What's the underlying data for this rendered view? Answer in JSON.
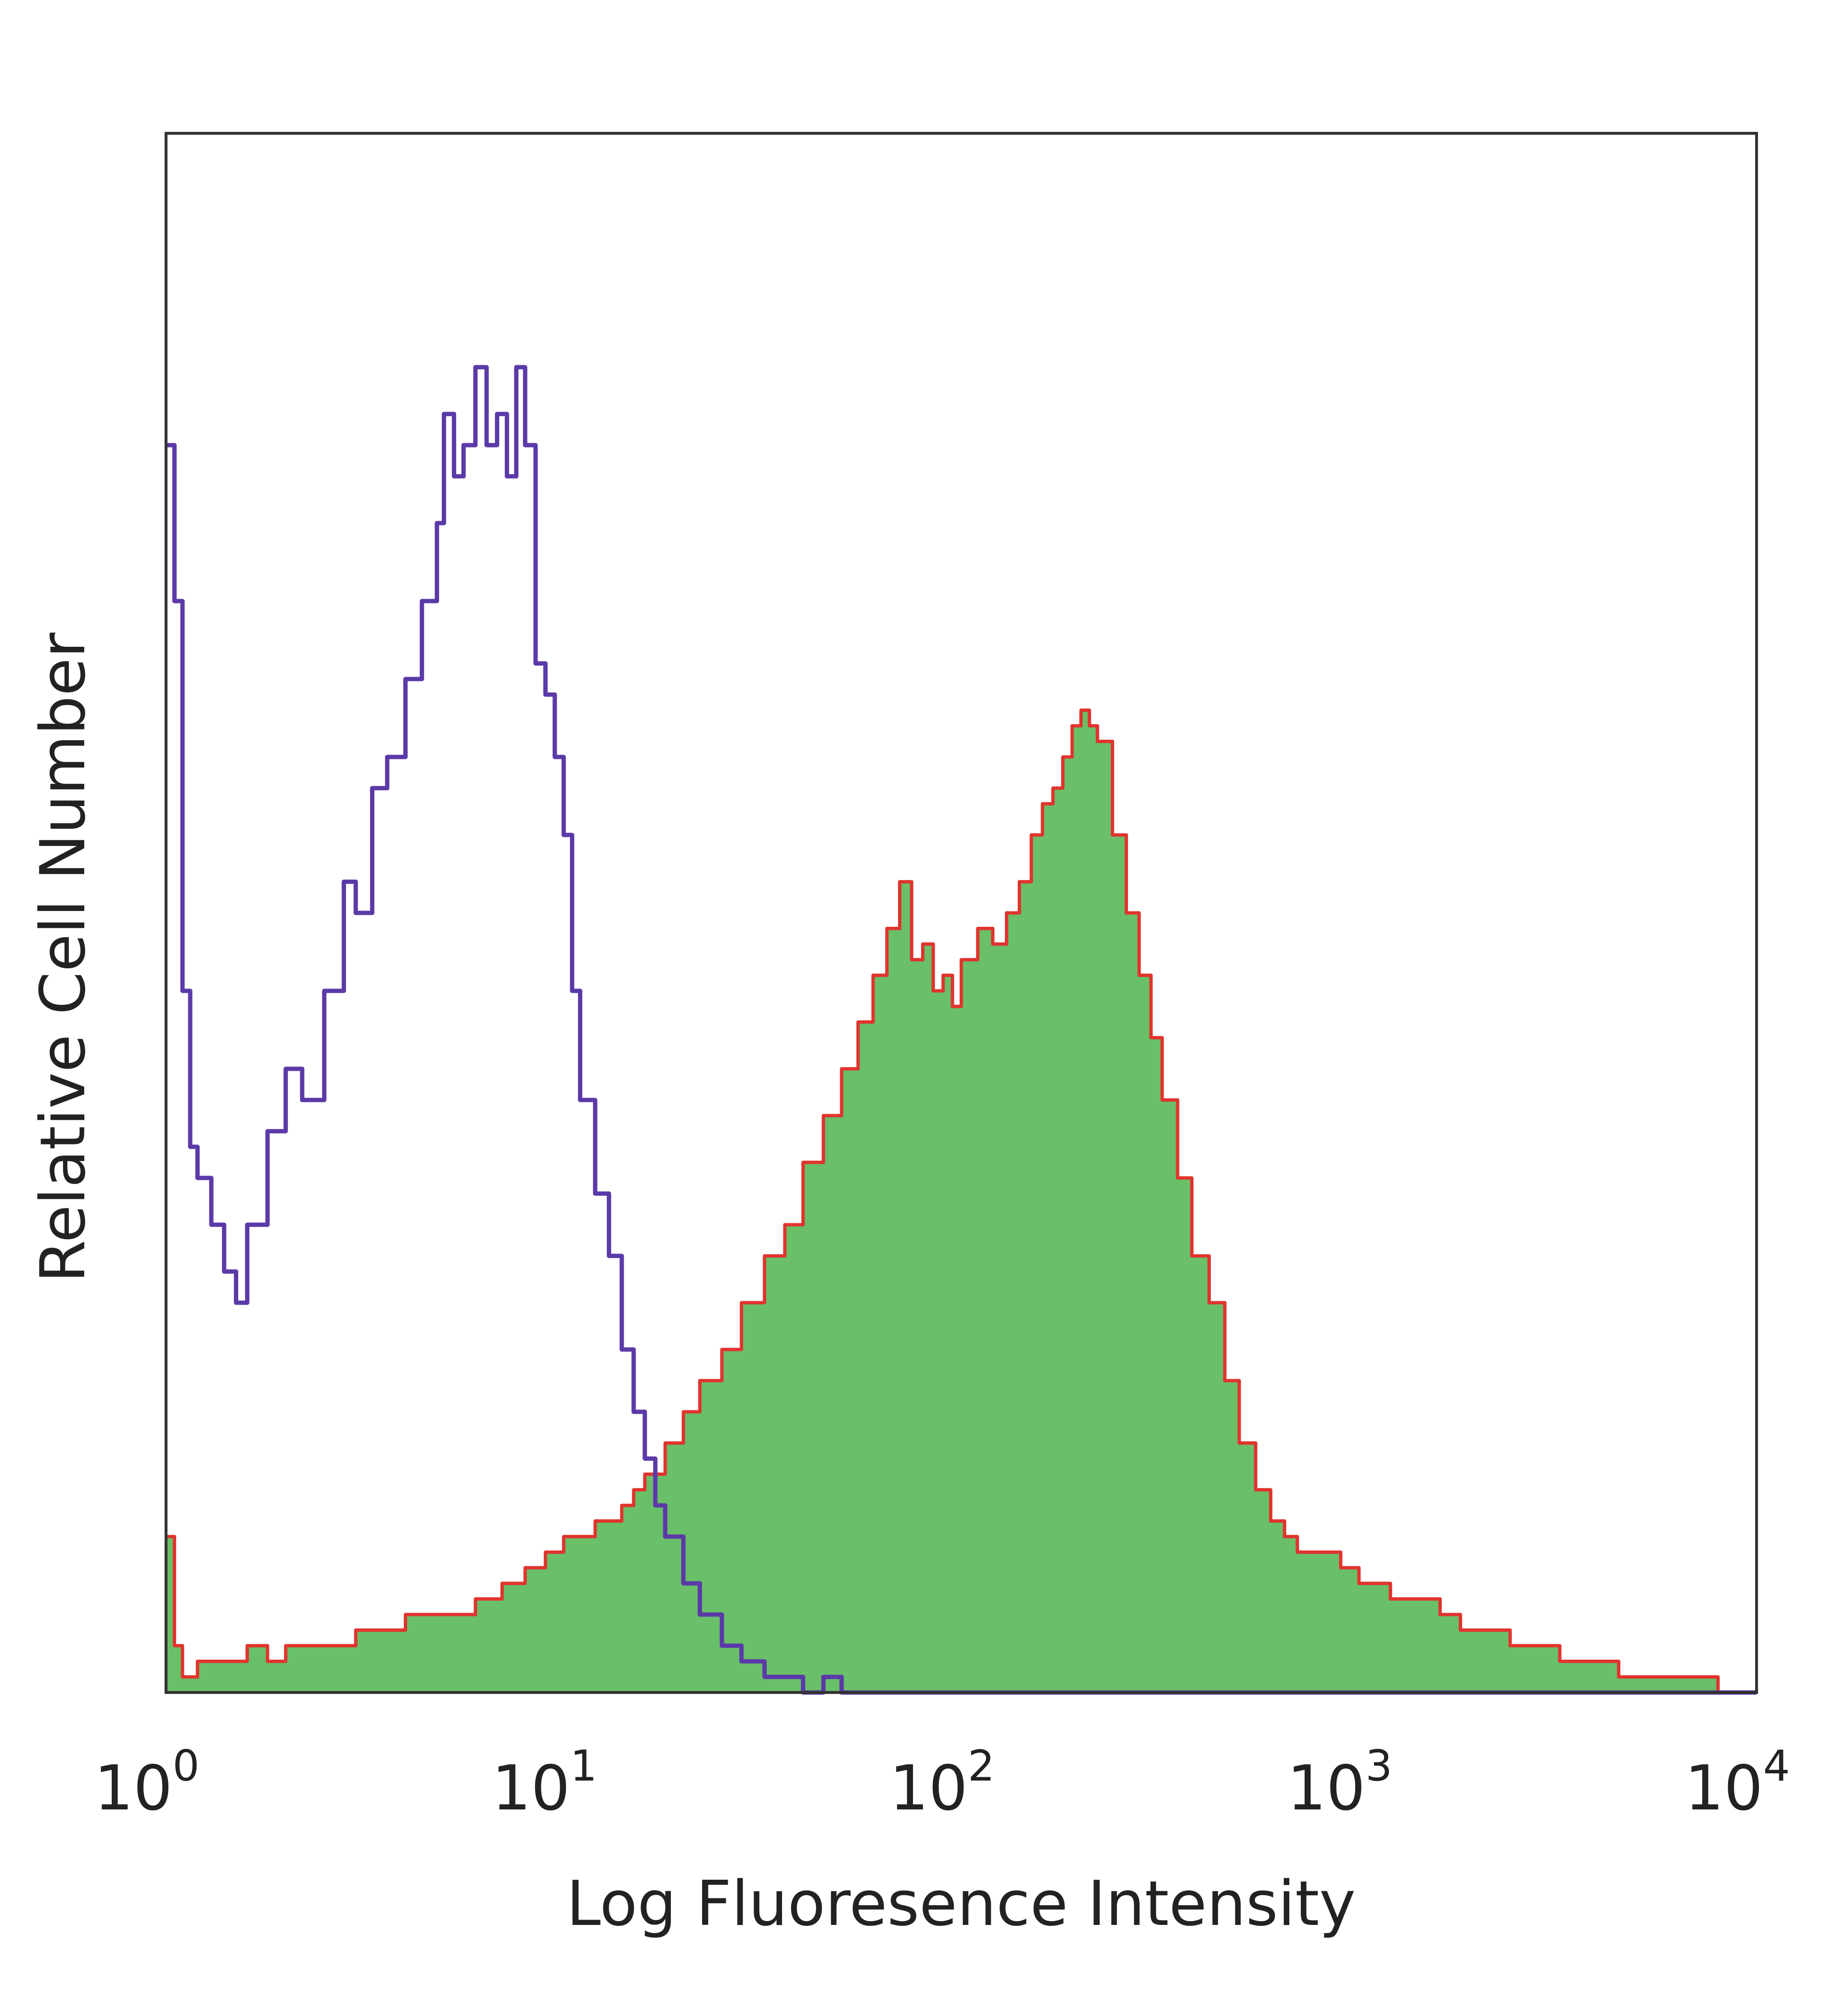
{
  "chart_data": {
    "type": "area",
    "title": "",
    "xlabel": "Log Fluoresence Intensity",
    "ylabel": "Relative Cell Number",
    "x_scale": "log",
    "xlim": [
      1,
      10000
    ],
    "ylim": [
      0,
      100
    ],
    "grid": false,
    "legend": "none",
    "x_ticks": [
      {
        "base": "10",
        "exp": "0"
      },
      {
        "base": "10",
        "exp": "1"
      },
      {
        "base": "10",
        "exp": "2"
      },
      {
        "base": "10",
        "exp": "3"
      },
      {
        "base": "10",
        "exp": "4"
      }
    ],
    "series": [
      {
        "style": "outline",
        "color": "#5b3aa8",
        "x": [
          1.0,
          1.05,
          1.1,
          1.15,
          1.2,
          1.3,
          1.4,
          1.5,
          1.6,
          1.8,
          2.0,
          2.2,
          2.5,
          2.8,
          3.0,
          3.3,
          3.6,
          4.0,
          4.4,
          4.8,
          5.0,
          5.3,
          5.6,
          6.0,
          6.4,
          6.8,
          7.2,
          7.6,
          8.0,
          8.5,
          9.0,
          9.5,
          10.0,
          10.5,
          11.0,
          12.0,
          13.0,
          14.0,
          15.0,
          16.0,
          17.0,
          18.0,
          20.0,
          22.0,
          25.0,
          28.0,
          32.0,
          36.0,
          40.0,
          45.0,
          50.0,
          10000.0
        ],
        "y": [
          80,
          70,
          45,
          35,
          33,
          30,
          27,
          25,
          30,
          36,
          40,
          38,
          45,
          52,
          50,
          58,
          60,
          65,
          70,
          75,
          82,
          78,
          80,
          85,
          80,
          82,
          78,
          85,
          80,
          66,
          64,
          60,
          55,
          45,
          38,
          32,
          28,
          22,
          18,
          15,
          12,
          10,
          7,
          5,
          3,
          2,
          1,
          1,
          0,
          1,
          0,
          0
        ]
      },
      {
        "style": "filled",
        "color": "#6abf69",
        "outline_color": "#e0342e",
        "x": [
          1.0,
          1.05,
          1.1,
          1.2,
          1.4,
          1.6,
          1.8,
          2.0,
          2.5,
          3.0,
          3.5,
          4.0,
          5.0,
          6.0,
          7.0,
          8.0,
          9.0,
          10.0,
          11.0,
          12.0,
          13.0,
          14.0,
          15.0,
          16.0,
          18.0,
          20.0,
          22.0,
          25.0,
          28.0,
          32.0,
          36.0,
          40.0,
          45.0,
          50.0,
          55.0,
          60.0,
          65.0,
          70.0,
          75.0,
          80.0,
          85.0,
          90.0,
          95.0,
          100.0,
          110.0,
          120.0,
          130.0,
          140.0,
          150.0,
          160.0,
          170.0,
          180.0,
          190.0,
          200.0,
          210.0,
          220.0,
          240.0,
          260.0,
          280.0,
          300.0,
          320.0,
          350.0,
          380.0,
          420.0,
          460.0,
          500.0,
          550.0,
          600.0,
          650.0,
          700.0,
          800.0,
          900.0,
          1000.0,
          1100.0,
          1200.0,
          1400.0,
          1600.0,
          1800.0,
          2000.0,
          2400.0,
          2800.0,
          3200.0,
          3600.0,
          4000.0,
          4500.0,
          5000.0,
          6000.0,
          7000.0,
          8000.0,
          10000.0
        ],
        "y": [
          10,
          3,
          1,
          2,
          2,
          3,
          2,
          3,
          3,
          4,
          4,
          5,
          5,
          6,
          7,
          8,
          9,
          10,
          10,
          11,
          11,
          12,
          13,
          14,
          16,
          18,
          20,
          22,
          25,
          28,
          30,
          34,
          37,
          40,
          43,
          46,
          49,
          52,
          47,
          48,
          45,
          46,
          44,
          47,
          49,
          48,
          50,
          52,
          55,
          57,
          58,
          60,
          62,
          63,
          62,
          61,
          55,
          50,
          46,
          42,
          38,
          33,
          28,
          25,
          20,
          16,
          13,
          11,
          10,
          9,
          9,
          8,
          7,
          7,
          6,
          6,
          5,
          4,
          4,
          3,
          3,
          2,
          2,
          2,
          1,
          1,
          1,
          1,
          0,
          0
        ]
      }
    ]
  }
}
